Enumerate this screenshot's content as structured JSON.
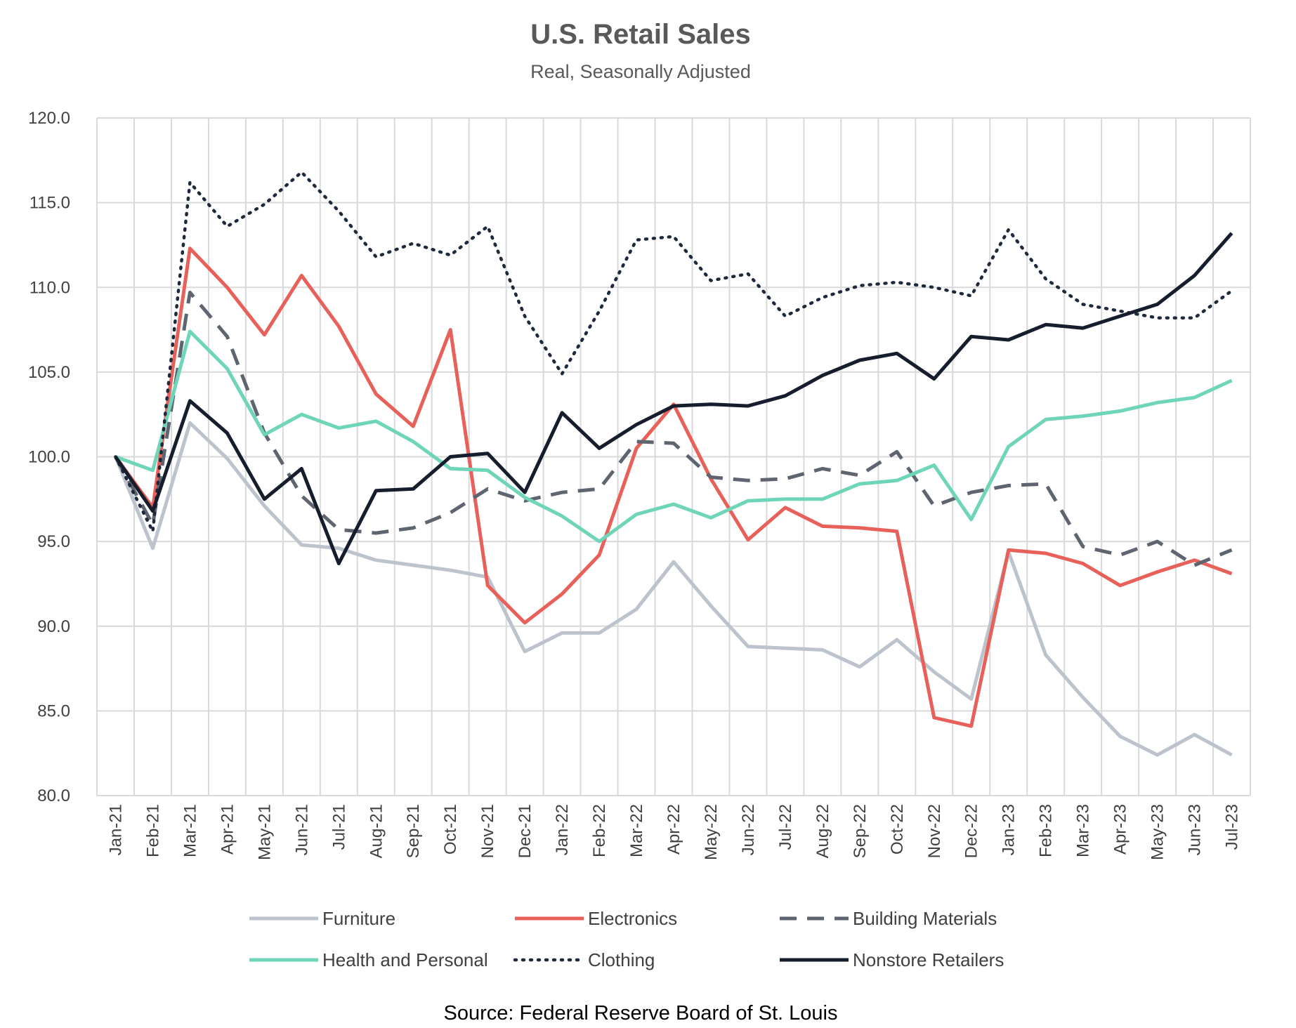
{
  "chart_data": {
    "type": "line",
    "title": "U.S. Retail Sales",
    "subtitle": "Real, Seasonally Adjusted",
    "source": "Source: Federal Reserve Board of St. Louis",
    "xlabel": "",
    "ylabel": "",
    "ylim": [
      80,
      120
    ],
    "y_ticks": [
      "120.0",
      "115.0",
      "110.0",
      "105.0",
      "100.0",
      "95.0",
      "90.0",
      "85.0",
      "80.0"
    ],
    "y_tick_values": [
      120,
      115,
      110,
      105,
      100,
      95,
      90,
      85,
      80
    ],
    "grid": true,
    "legend_position": "bottom",
    "categories": [
      "Jan-21",
      "Feb-21",
      "Mar-21",
      "Apr-21",
      "May-21",
      "Jun-21",
      "Jul-21",
      "Aug-21",
      "Sep-21",
      "Oct-21",
      "Nov-21",
      "Dec-21",
      "Jan-22",
      "Feb-22",
      "Mar-22",
      "Apr-22",
      "May-22",
      "Jun-22",
      "Jul-22",
      "Aug-22",
      "Sep-22",
      "Oct-22",
      "Nov-22",
      "Dec-22",
      "Jan-23",
      "Feb-23",
      "Mar-23",
      "Apr-23",
      "May-23",
      "Jun-23",
      "Jul-23"
    ],
    "series": [
      {
        "name": "Furniture",
        "color": "#bcc3cc",
        "style": "solid",
        "values": [
          100.0,
          94.6,
          102.0,
          99.9,
          97.1,
          94.8,
          94.6,
          93.9,
          93.6,
          93.3,
          92.9,
          88.5,
          89.6,
          89.6,
          91.0,
          93.8,
          91.2,
          88.8,
          88.7,
          88.6,
          87.6,
          89.2,
          87.3,
          85.7,
          94.4,
          88.3,
          85.8,
          83.5,
          82.4,
          83.6,
          82.4
        ]
      },
      {
        "name": "Electronics",
        "color": "#e8605a",
        "style": "solid",
        "values": [
          100.0,
          97.0,
          112.3,
          110.0,
          107.2,
          110.7,
          107.7,
          103.7,
          101.8,
          107.5,
          92.4,
          90.2,
          91.9,
          94.2,
          100.5,
          103.1,
          98.7,
          95.1,
          97.0,
          95.9,
          95.8,
          95.6,
          84.6,
          84.1,
          94.5,
          94.3,
          93.7,
          92.4,
          93.2,
          93.9,
          93.1
        ]
      },
      {
        "name": "Building Materials",
        "color": "#5f6570",
        "style": "dashed",
        "values": [
          100.0,
          96.0,
          109.7,
          107.1,
          101.4,
          97.7,
          95.7,
          95.5,
          95.8,
          96.7,
          98.1,
          97.4,
          97.9,
          98.1,
          100.9,
          100.8,
          98.8,
          98.6,
          98.7,
          99.3,
          98.9,
          100.3,
          97.1,
          97.9,
          98.3,
          98.4,
          94.7,
          94.2,
          95.0,
          93.6,
          94.5
        ]
      },
      {
        "name": "Health and Personal",
        "color": "#6fd5b8",
        "style": "solid",
        "values": [
          100.0,
          99.2,
          107.4,
          105.2,
          101.3,
          102.5,
          101.7,
          102.1,
          100.9,
          99.3,
          99.2,
          97.6,
          96.5,
          95.0,
          96.6,
          97.2,
          96.4,
          97.4,
          97.5,
          97.5,
          98.4,
          98.6,
          99.5,
          96.3,
          100.6,
          102.2,
          102.4,
          102.7,
          103.2,
          103.5,
          104.5
        ]
      },
      {
        "name": "Clothing",
        "color": "#1e2a3c",
        "style": "dotted",
        "values": [
          100.0,
          95.6,
          116.2,
          113.6,
          114.9,
          116.8,
          114.5,
          111.8,
          112.6,
          111.9,
          113.6,
          108.3,
          104.9,
          108.6,
          112.8,
          113.0,
          110.4,
          110.8,
          108.3,
          109.4,
          110.1,
          110.3,
          110.0,
          109.5,
          113.4,
          110.5,
          109.0,
          108.6,
          108.2,
          108.2,
          109.8
        ]
      },
      {
        "name": "Nonstore Retailers",
        "color": "#161e2d",
        "style": "solid",
        "values": [
          100.0,
          96.8,
          103.3,
          101.4,
          97.5,
          99.3,
          93.7,
          98.0,
          98.1,
          100.0,
          100.2,
          97.9,
          102.6,
          100.5,
          101.9,
          103.0,
          103.1,
          103.0,
          103.6,
          104.8,
          105.7,
          106.1,
          104.6,
          107.1,
          106.9,
          107.8,
          107.6,
          108.3,
          109.0,
          110.7,
          113.2
        ]
      }
    ]
  }
}
